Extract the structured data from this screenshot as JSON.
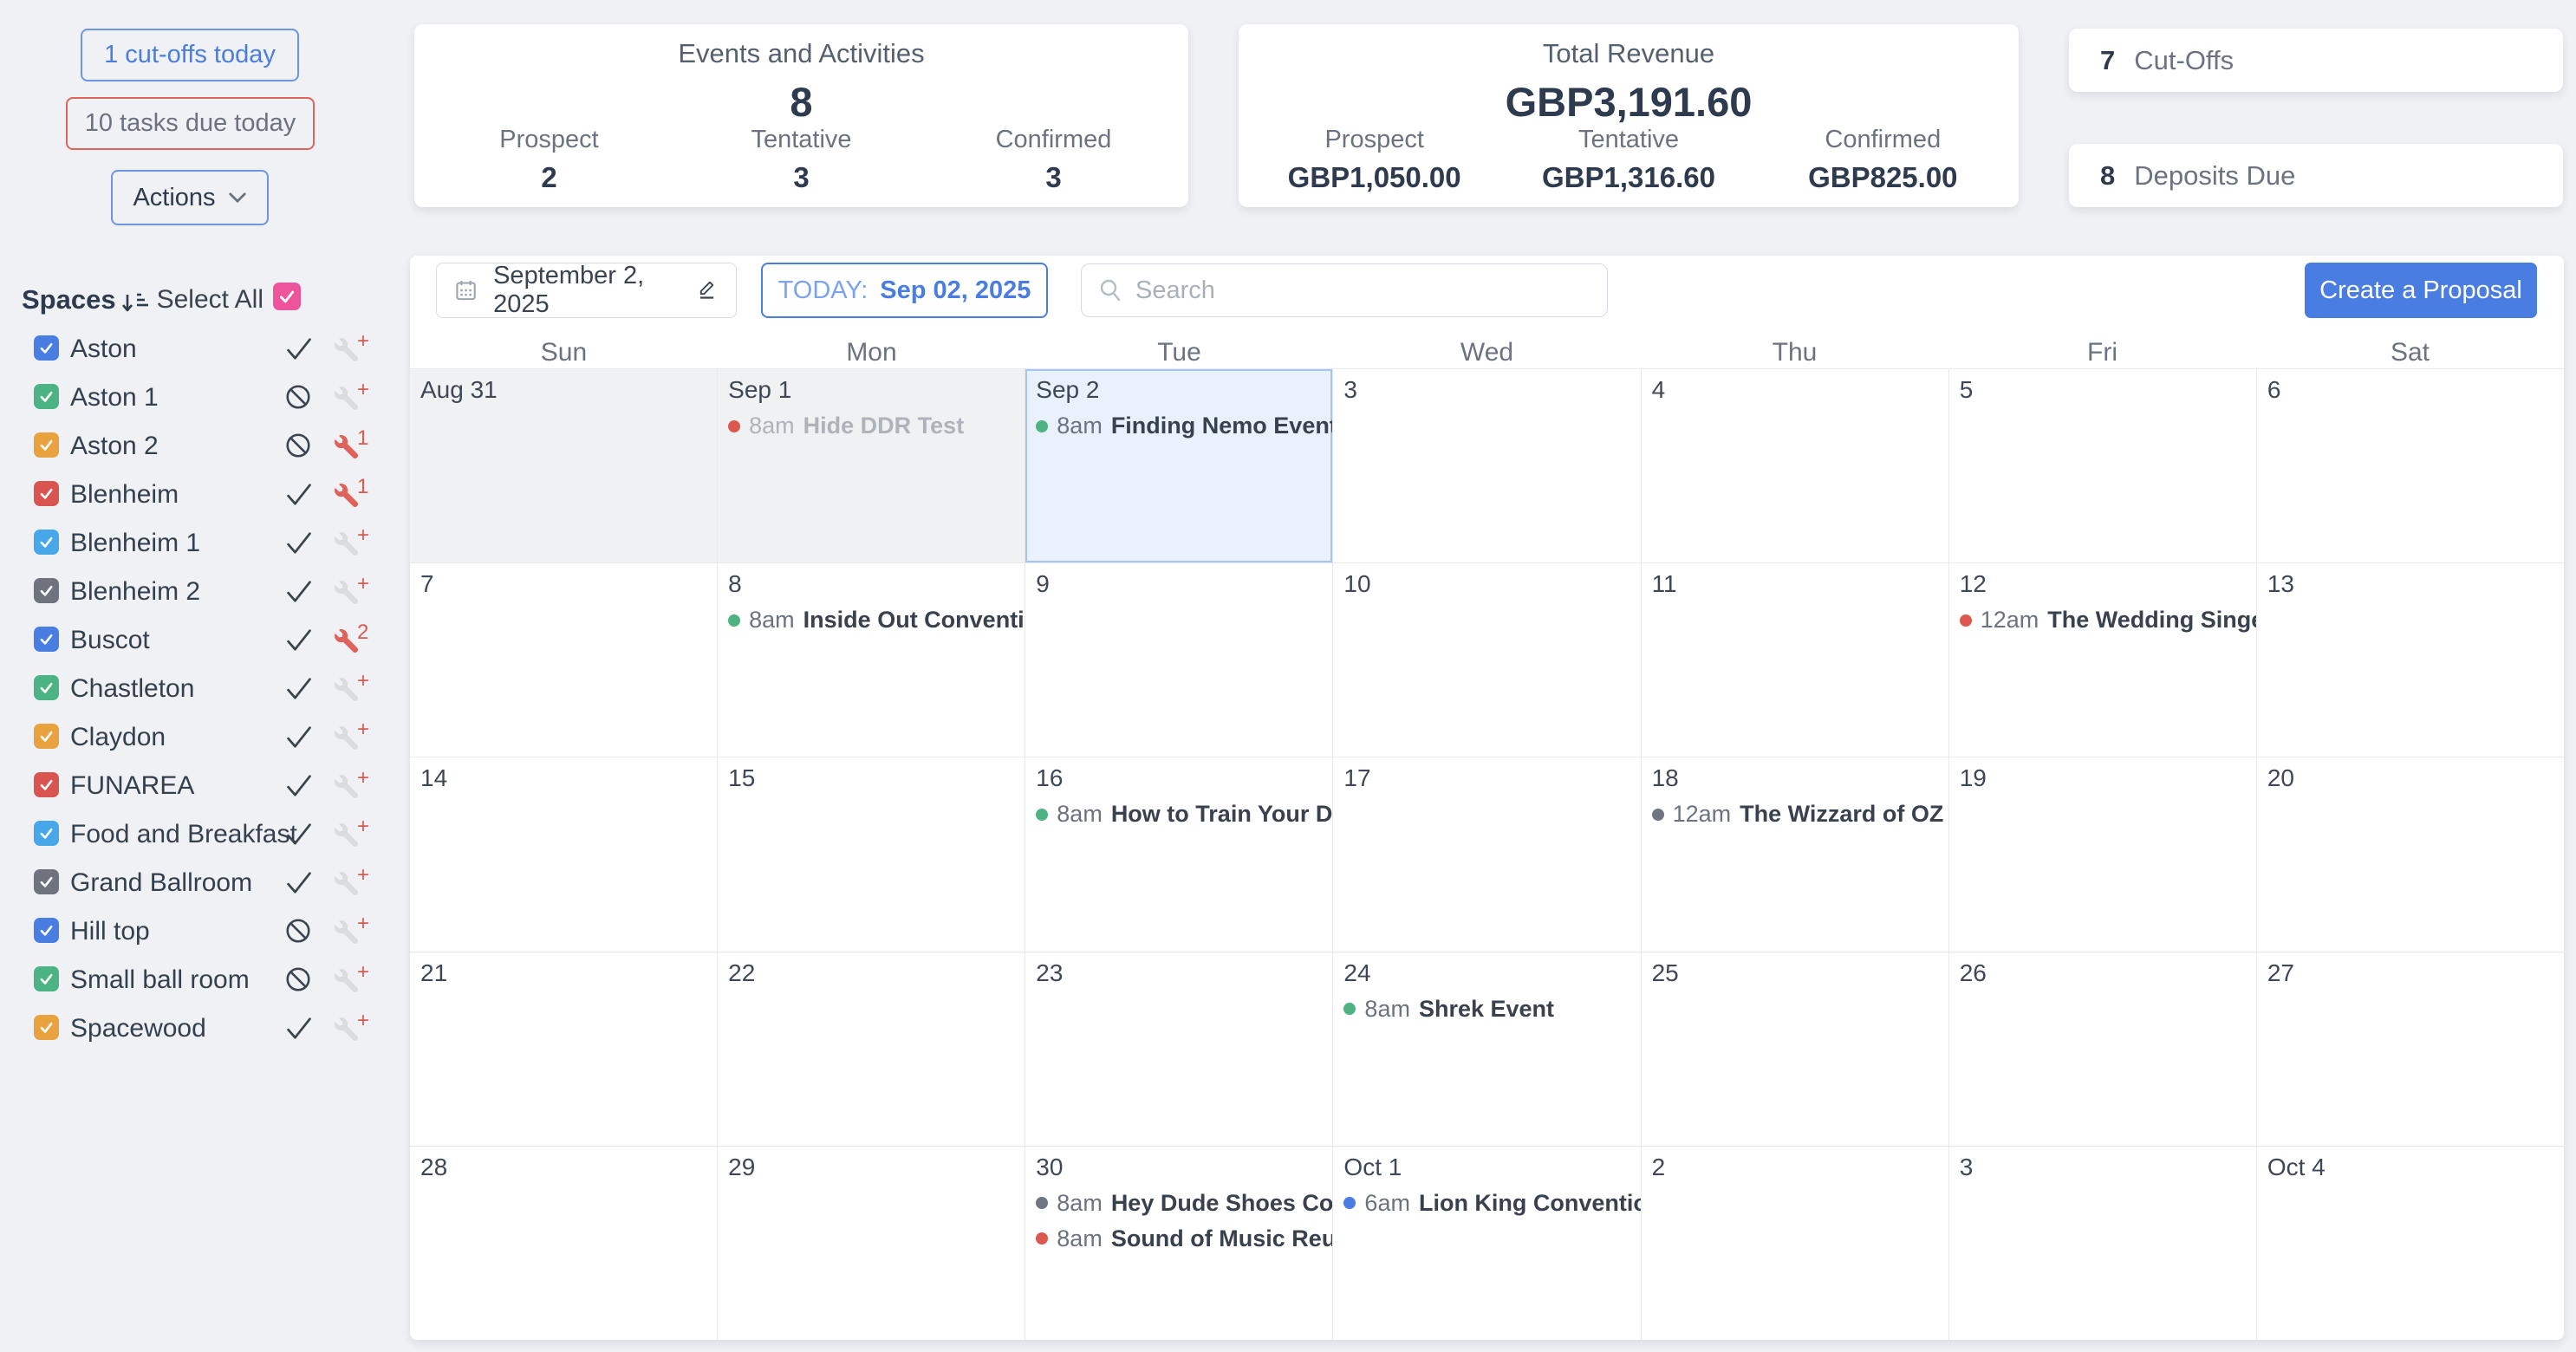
{
  "quick_actions": {
    "cutoffs_today": "1 cut-offs today",
    "tasks_due_today": "10 tasks due today",
    "actions_label": "Actions"
  },
  "summary_cards": {
    "events": {
      "title": "Events and Activities",
      "total": "8",
      "items": [
        {
          "label": "Prospect",
          "value": "2"
        },
        {
          "label": "Tentative",
          "value": "3"
        },
        {
          "label": "Confirmed",
          "value": "3"
        }
      ]
    },
    "revenue": {
      "title": "Total Revenue",
      "total": "GBP3,191.60",
      "items": [
        {
          "label": "Prospect",
          "value": "GBP1,050.00"
        },
        {
          "label": "Tentative",
          "value": "GBP1,316.60"
        },
        {
          "label": "Confirmed",
          "value": "GBP825.00"
        }
      ]
    },
    "cutoffs": {
      "count": "7",
      "label": "Cut-Offs"
    },
    "deposits": {
      "count": "8",
      "label": "Deposits Due"
    }
  },
  "sidebar": {
    "title": "Spaces",
    "select_all_label": "Select All",
    "select_all_color": "#ee549b",
    "spaces": [
      {
        "name": "Aston",
        "color": "#4a7de2",
        "status": "check",
        "wrench": "plus"
      },
      {
        "name": "Aston 1",
        "color": "#4cb484",
        "status": "blocked",
        "wrench": "plus"
      },
      {
        "name": "Aston 2",
        "color": "#eaa23e",
        "status": "blocked",
        "wrench": "1"
      },
      {
        "name": "Blenheim",
        "color": "#da5552",
        "status": "check",
        "wrench": "1"
      },
      {
        "name": "Blenheim 1",
        "color": "#47a7e8",
        "status": "check",
        "wrench": "plus"
      },
      {
        "name": "Blenheim 2",
        "color": "#6e737e",
        "status": "check",
        "wrench": "plus"
      },
      {
        "name": "Buscot",
        "color": "#4a7de2",
        "status": "check",
        "wrench": "2"
      },
      {
        "name": "Chastleton",
        "color": "#4cb484",
        "status": "check",
        "wrench": "plus"
      },
      {
        "name": "Claydon",
        "color": "#eaa23e",
        "status": "check",
        "wrench": "plus"
      },
      {
        "name": "FUNAREA",
        "color": "#da5552",
        "status": "check",
        "wrench": "plus"
      },
      {
        "name": "Food and Breakfast",
        "color": "#47a7e8",
        "status": "check",
        "wrench": "plus"
      },
      {
        "name": "Grand Ballroom",
        "color": "#6e737e",
        "status": "check",
        "wrench": "plus"
      },
      {
        "name": "Hill top",
        "color": "#4a7de2",
        "status": "blocked",
        "wrench": "plus"
      },
      {
        "name": "Small ball room",
        "color": "#4cb484",
        "status": "blocked",
        "wrench": "plus"
      },
      {
        "name": "Spacewood",
        "color": "#eaa23e",
        "status": "check",
        "wrench": "plus"
      }
    ]
  },
  "toolbar": {
    "date_label": "September 2, 2025",
    "today_prefix": "TODAY:",
    "today_date": "Sep 02, 2025",
    "search_placeholder": "Search",
    "create_proposal_label": "Create a Proposal"
  },
  "calendar": {
    "day_headers": [
      "Sun",
      "Mon",
      "Tue",
      "Wed",
      "Thu",
      "Fri",
      "Sat"
    ],
    "weeks": [
      [
        {
          "label": "Aug 31",
          "past": true
        },
        {
          "label": "Sep 1",
          "past": true,
          "events": [
            {
              "dot": "#dc5950",
              "time": "8am",
              "title": "Hide DDR Test",
              "muted": true
            }
          ]
        },
        {
          "label": "Sep 2",
          "today": true,
          "events": [
            {
              "dot": "#4db383",
              "time": "8am",
              "title": "Finding Nemo Event"
            }
          ]
        },
        {
          "label": "3"
        },
        {
          "label": "4"
        },
        {
          "label": "5"
        },
        {
          "label": "6"
        }
      ],
      [
        {
          "label": "7"
        },
        {
          "label": "8",
          "events": [
            {
              "dot": "#4db383",
              "time": "8am",
              "title": "Inside Out Convention"
            }
          ]
        },
        {
          "label": "9"
        },
        {
          "label": "10"
        },
        {
          "label": "11"
        },
        {
          "label": "12",
          "events": [
            {
              "dot": "#dc5950",
              "time": "12am",
              "title": "The Wedding Singer"
            }
          ]
        },
        {
          "label": "13"
        }
      ],
      [
        {
          "label": "14"
        },
        {
          "label": "15"
        },
        {
          "label": "16",
          "events": [
            {
              "dot": "#4db383",
              "time": "8am",
              "title": "How to Train Your Drago"
            }
          ]
        },
        {
          "label": "17"
        },
        {
          "label": "18",
          "events": [
            {
              "dot": "#6e7681",
              "time": "12am",
              "title": "The Wizzard of OZ Conv"
            }
          ]
        },
        {
          "label": "19"
        },
        {
          "label": "20"
        }
      ],
      [
        {
          "label": "21"
        },
        {
          "label": "22"
        },
        {
          "label": "23"
        },
        {
          "label": "24",
          "events": [
            {
              "dot": "#4db383",
              "time": "8am",
              "title": "Shrek Event"
            }
          ]
        },
        {
          "label": "25"
        },
        {
          "label": "26"
        },
        {
          "label": "27"
        }
      ],
      [
        {
          "label": "28"
        },
        {
          "label": "29"
        },
        {
          "label": "30",
          "events": [
            {
              "dot": "#6e7681",
              "time": "8am",
              "title": "Hey Dude Shoes Convent"
            },
            {
              "dot": "#dc5950",
              "time": "8am",
              "title": "Sound of Music Reunion"
            }
          ]
        },
        {
          "label": "Oct 1",
          "events": [
            {
              "dot": "#4a7de2",
              "time": "6am",
              "title": "Lion King Convention"
            }
          ]
        },
        {
          "label": "2"
        },
        {
          "label": "3"
        },
        {
          "label": "Oct 4"
        }
      ]
    ]
  },
  "colors": {
    "accent_blue": "#4a7de2",
    "danger_red": "#dc5950",
    "page_background": "#eff1f4",
    "past_day_background": "#f0f1f3",
    "today_background": "#e9f2fc",
    "grid_line": "#e7e9ec"
  }
}
